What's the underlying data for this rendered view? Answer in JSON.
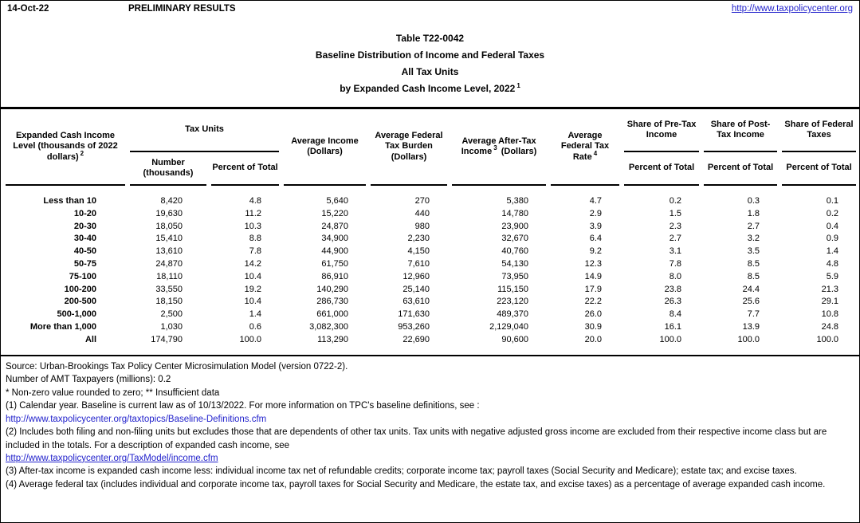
{
  "colors": {
    "background": "#FFFFFF",
    "text": "#000000",
    "link": "#2222CC",
    "rule": "#000000"
  },
  "topbar": {
    "date": "14-Oct-22",
    "preliminary": "PRELIMINARY RESULTS",
    "site_url": "http://www.taxpolicycenter.org"
  },
  "title": {
    "line1": "Table T22-0042",
    "line2": "Baseline Distribution of Income and Federal Taxes",
    "line3": "All Tax Units",
    "line4": "by Expanded Cash Income Level, 2022",
    "line4_sup": "1"
  },
  "table": {
    "headers": {
      "eci": {
        "text": "Expanded Cash Income Level (thousands of 2022 dollars)",
        "sup": "2"
      },
      "tax_units_group": "Tax Units",
      "number_sub": "Number (thousands)",
      "percent_sub": "Percent of Total",
      "avg_income": "Average Income (Dollars)",
      "avg_fed_tax_burden": "Average Federal Tax Burden (Dollars)",
      "avg_after_tax": {
        "pre": "Average After-Tax Income",
        "sup": "3",
        "post": "(Dollars)"
      },
      "avg_fed_tax_rate": {
        "pre": "Average Federal Tax Rate",
        "sup": "4"
      },
      "share_pre_tax": "Share of Pre-Tax Income",
      "share_post_tax": "Share of Post-Tax Income",
      "share_fed_taxes": "Share of Federal Taxes"
    },
    "column_semantics": [
      "expanded-cash-income-level",
      "tax-units-number-thousands",
      "tax-units-percent-of-total",
      "average-income-dollars",
      "average-federal-tax-burden-dollars",
      "average-after-tax-income-dollars",
      "average-federal-tax-rate",
      "share-of-pre-tax-income-percent",
      "share-of-post-tax-income-percent",
      "share-of-federal-taxes-percent"
    ],
    "rows": [
      {
        "label": "Less than 10",
        "values": [
          "8,420",
          "4.8",
          "5,640",
          "270",
          "5,380",
          "4.7",
          "0.2",
          "0.3",
          "0.1"
        ]
      },
      {
        "label": "10-20",
        "values": [
          "19,630",
          "11.2",
          "15,220",
          "440",
          "14,780",
          "2.9",
          "1.5",
          "1.8",
          "0.2"
        ]
      },
      {
        "label": "20-30",
        "values": [
          "18,050",
          "10.3",
          "24,870",
          "980",
          "23,900",
          "3.9",
          "2.3",
          "2.7",
          "0.4"
        ]
      },
      {
        "label": "30-40",
        "values": [
          "15,410",
          "8.8",
          "34,900",
          "2,230",
          "32,670",
          "6.4",
          "2.7",
          "3.2",
          "0.9"
        ]
      },
      {
        "label": "40-50",
        "values": [
          "13,610",
          "7.8",
          "44,900",
          "4,150",
          "40,760",
          "9.2",
          "3.1",
          "3.5",
          "1.4"
        ]
      },
      {
        "label": "50-75",
        "values": [
          "24,870",
          "14.2",
          "61,750",
          "7,610",
          "54,130",
          "12.3",
          "7.8",
          "8.5",
          "4.8"
        ]
      },
      {
        "label": "75-100",
        "values": [
          "18,110",
          "10.4",
          "86,910",
          "12,960",
          "73,950",
          "14.9",
          "8.0",
          "8.5",
          "5.9"
        ]
      },
      {
        "label": "100-200",
        "values": [
          "33,550",
          "19.2",
          "140,290",
          "25,140",
          "115,150",
          "17.9",
          "23.8",
          "24.4",
          "21.3"
        ]
      },
      {
        "label": "200-500",
        "values": [
          "18,150",
          "10.4",
          "286,730",
          "63,610",
          "223,120",
          "22.2",
          "26.3",
          "25.6",
          "29.1"
        ]
      },
      {
        "label": "500-1,000",
        "values": [
          "2,500",
          "1.4",
          "661,000",
          "171,630",
          "489,370",
          "26.0",
          "8.4",
          "7.7",
          "10.8"
        ]
      },
      {
        "label": "More than 1,000",
        "values": [
          "1,030",
          "0.6",
          "3,082,300",
          "953,260",
          "2,129,040",
          "30.9",
          "16.1",
          "13.9",
          "24.8"
        ]
      },
      {
        "label": "All",
        "values": [
          "174,790",
          "100.0",
          "113,290",
          "22,690",
          "90,600",
          "20.0",
          "100.0",
          "100.0",
          "100.0"
        ]
      }
    ]
  },
  "footnotes": {
    "source": "Source: Urban-Brookings Tax Policy Center Microsimulation Model (version 0722-2).",
    "amt": "Number of AMT Taxpayers (millions): 0.2",
    "stars": "* Non-zero value rounded to zero; ** Insufficient data",
    "fn1": "(1) Calendar year. Baseline is current law as of 10/13/2022. For more information on TPC's baseline definitions, see :",
    "fn1_link": "http://www.taxpolicycenter.org/taxtopics/Baseline-Definitions.cfm",
    "fn2": "(2) Includes both filing and non-filing units but excludes those that are dependents of other tax units. Tax units with negative adjusted gross income are excluded from their respective income class but are included in the totals. For a description of expanded cash income, see",
    "fn2_link": "http://www.taxpolicycenter.org/TaxModel/income.cfm",
    "fn3": "(3) After-tax income is expanded cash income less: individual income tax net of refundable credits; corporate income tax; payroll taxes (Social Security and Medicare); estate tax; and excise taxes.",
    "fn4": "(4) Average federal tax (includes individual and corporate income tax, payroll taxes for Social Security and Medicare, the estate tax, and excise taxes) as a percentage of average expanded cash income."
  }
}
